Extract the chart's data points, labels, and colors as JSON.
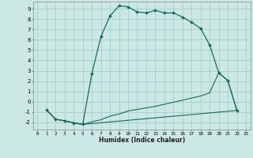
{
  "title": "",
  "xlabel": "Humidex (Indice chaleur)",
  "bg_color": "#cce8e4",
  "line_color": "#1a6b5a",
  "grid_color": "#99cccc",
  "xlim": [
    -0.5,
    23.5
  ],
  "ylim": [
    -2.7,
    9.7
  ],
  "xticks": [
    0,
    1,
    2,
    3,
    4,
    5,
    6,
    7,
    8,
    9,
    10,
    11,
    12,
    13,
    14,
    15,
    16,
    17,
    18,
    19,
    20,
    21,
    22,
    23
  ],
  "yticks": [
    -2,
    -1,
    0,
    1,
    2,
    3,
    4,
    5,
    6,
    7,
    8,
    9
  ],
  "line1_x": [
    1,
    2,
    3,
    4,
    5,
    6,
    7,
    8,
    9,
    10,
    11,
    12,
    13,
    14,
    15,
    16,
    17,
    18,
    19,
    20,
    21,
    22
  ],
  "line1_y": [
    -0.8,
    -1.7,
    -1.85,
    -2.05,
    -2.2,
    2.7,
    6.3,
    8.3,
    9.3,
    9.2,
    8.7,
    8.6,
    8.85,
    8.6,
    8.6,
    8.2,
    7.7,
    7.1,
    5.5,
    2.8,
    2.05,
    -0.85
  ],
  "line2_x": [
    1,
    2,
    3,
    4,
    5,
    22
  ],
  "line2_y": [
    -0.8,
    -1.7,
    -1.85,
    -2.05,
    -2.2,
    -0.85
  ],
  "line3_x": [
    1,
    2,
    3,
    4,
    5,
    6,
    7,
    8,
    9,
    10,
    11,
    12,
    13,
    14,
    15,
    16,
    17,
    18,
    19,
    20,
    21,
    22
  ],
  "line3_y": [
    -0.8,
    -1.7,
    -1.85,
    -2.05,
    -2.2,
    -1.95,
    -1.75,
    -1.4,
    -1.2,
    -0.9,
    -0.75,
    -0.6,
    -0.45,
    -0.25,
    -0.05,
    0.15,
    0.35,
    0.55,
    0.85,
    2.8,
    2.05,
    -0.85
  ]
}
